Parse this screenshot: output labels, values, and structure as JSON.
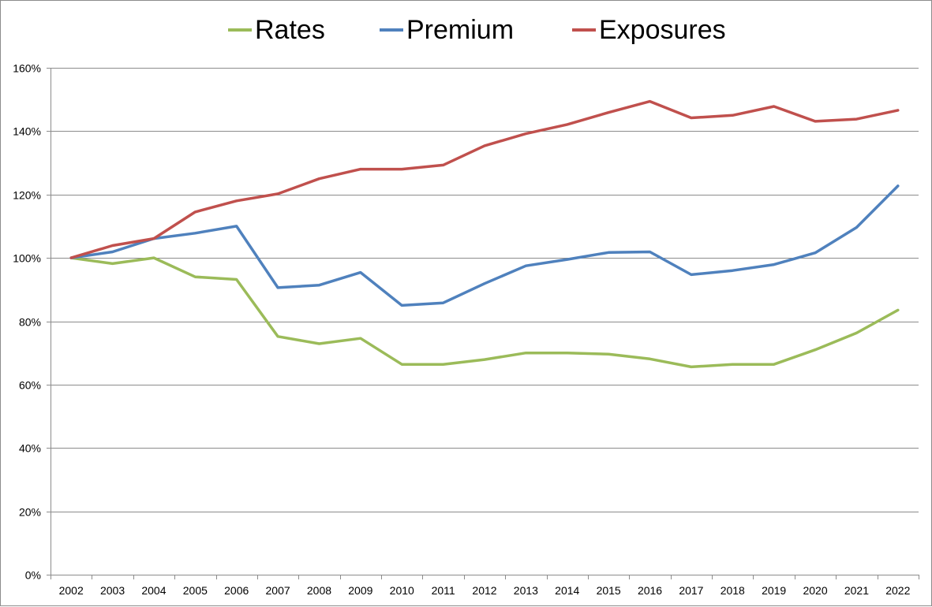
{
  "chart_data": {
    "type": "line",
    "title": "",
    "xlabel": "",
    "ylabel": "",
    "x": [
      "2002",
      "2003",
      "2004",
      "2005",
      "2006",
      "2007",
      "2008",
      "2009",
      "2010",
      "2011",
      "2012",
      "2013",
      "2014",
      "2015",
      "2016",
      "2017",
      "2018",
      "2019",
      "2020",
      "2021",
      "2022"
    ],
    "ylim": [
      0,
      160
    ],
    "yticks": [
      0,
      20,
      40,
      60,
      80,
      100,
      120,
      140,
      160
    ],
    "ytick_labels": [
      "0%",
      "20%",
      "40%",
      "60%",
      "80%",
      "100%",
      "120%",
      "140%",
      "160%"
    ],
    "grid": "horizontal",
    "legend_position": "top",
    "series": [
      {
        "name": "Rates",
        "color": "#9bbb59",
        "values": [
          100,
          98.2,
          100,
          94,
          93.2,
          75.2,
          72.9,
          74.6,
          66.4,
          66.4,
          67.9,
          70,
          70,
          69.6,
          68.1,
          65.6,
          66.4,
          66.4,
          71,
          76.3,
          83.5
        ]
      },
      {
        "name": "Premium",
        "color": "#4f81bd",
        "values": [
          100,
          101.9,
          106.1,
          107.8,
          110,
          90.6,
          91.4,
          95.4,
          85,
          85.8,
          91.9,
          97.5,
          99.5,
          101.7,
          101.9,
          94.7,
          96,
          97.9,
          101.6,
          109.6,
          122.7
        ]
      },
      {
        "name": "Exposures",
        "color": "#c0504d",
        "values": [
          100,
          103.9,
          106.1,
          114.5,
          118,
          120.2,
          125,
          128,
          128,
          129.3,
          135.4,
          139.2,
          142.1,
          145.9,
          149.4,
          144.2,
          145,
          147.8,
          143.1,
          143.8,
          146.6
        ]
      }
    ]
  }
}
